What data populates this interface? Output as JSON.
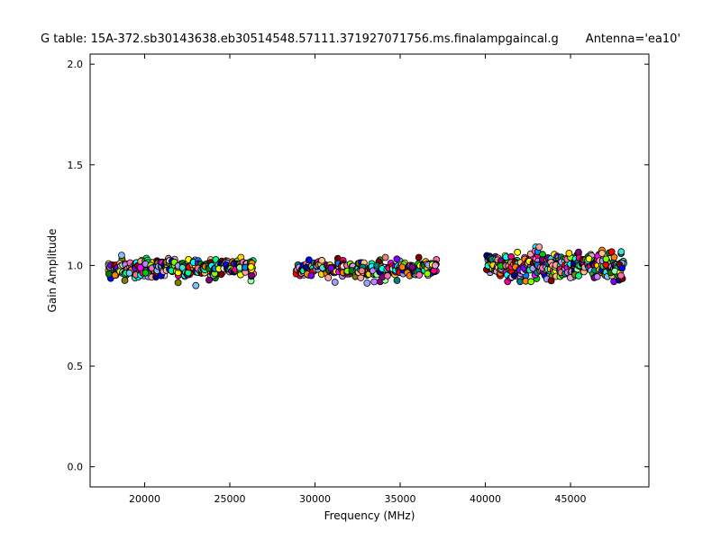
{
  "header": {
    "table_label": "G table: 15A-372.sb30143638.eb30514548.57111.371927071756.ms.finalampgaincal.g",
    "antenna_label": "Antenna='ea10'"
  },
  "chart_data": {
    "type": "scatter",
    "title": "G table: 15A-372.sb30143638.eb30514548.57111.371927071756.ms.finalampgaincal.g     Antenna='ea10'",
    "xlabel": "Frequency (MHz)",
    "ylabel": "Gain Amplitude",
    "xlim": [
      16800,
      49600
    ],
    "ylim": [
      -0.1,
      2.05
    ],
    "xticks": [
      20000,
      25000,
      30000,
      35000,
      40000,
      45000
    ],
    "xticklabels": [
      "20000",
      "25000",
      "30000",
      "35000",
      "40000",
      "45000"
    ],
    "yticks": [
      0.0,
      0.5,
      1.0,
      1.5,
      2.0
    ],
    "yticklabels": [
      "0.0",
      "0.5",
      "1.0",
      "1.5",
      "2.0"
    ],
    "grid": false,
    "frame_color": "#000000",
    "marker": {
      "shape": "circle",
      "radius": 3.5,
      "edge_color": "#000000",
      "edge_width": 0.8
    },
    "palette": [
      "#ff00ff",
      "#00ffff",
      "#ffff00",
      "#ff0000",
      "#00cc00",
      "#0000ff",
      "#ff8000",
      "#8000ff",
      "#00ff80",
      "#ff0080",
      "#80ff00",
      "#0080ff",
      "#800000",
      "#008000",
      "#000080",
      "#808000",
      "#800080",
      "#008080",
      "#ffa0a0",
      "#a0ffa0",
      "#a0a0ff",
      "#ffc080",
      "#c080ff",
      "#80c0ff",
      "#ffd700",
      "#ff69b4",
      "#7fff00",
      "#00fa9a",
      "#dda0dd",
      "#f08080",
      "#e0e0e0",
      "#40e0d0"
    ],
    "clusters": [
      {
        "name": "band-18-26-GHz",
        "x_min": 18000,
        "x_max": 26300,
        "columns": 28,
        "points_per_column": 13,
        "y_mean": 0.99,
        "y_std": 0.02,
        "y_min": 0.9,
        "y_max": 1.07,
        "outlier_prob": 0.03,
        "seed": 101
      },
      {
        "name": "band-29-37-GHz",
        "x_min": 29000,
        "x_max": 37000,
        "columns": 28,
        "points_per_column": 13,
        "y_mean": 0.985,
        "y_std": 0.016,
        "y_min": 0.9,
        "y_max": 1.04,
        "outlier_prob": 0.02,
        "seed": 202
      },
      {
        "name": "band-40-48-GHz",
        "x_min": 40200,
        "x_max": 48000,
        "columns": 30,
        "points_per_column": 14,
        "y_mean": 1.0,
        "y_std": 0.03,
        "y_min": 0.92,
        "y_max": 1.11,
        "outlier_prob": 0.02,
        "seed": 303
      }
    ]
  }
}
